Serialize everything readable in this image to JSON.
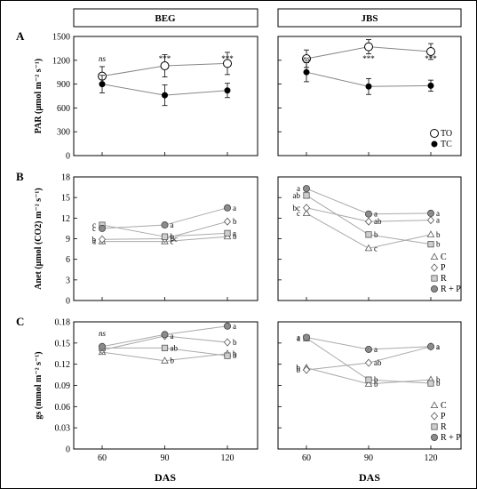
{
  "strips": [
    "BEG",
    "JBS"
  ],
  "x_axis_label": "DAS",
  "x_ticks": [
    "60",
    "90",
    "120"
  ],
  "chart_data": [
    {
      "type": "line",
      "panel": "A",
      "site": "BEG",
      "ylabel": "PAR (μmol m⁻² s⁻¹)",
      "ylim": [
        0,
        1500
      ],
      "yticks": [
        "0",
        "300",
        "600",
        "900",
        "1200",
        "1500"
      ],
      "x": [
        60,
        90,
        120
      ],
      "series": [
        {
          "name": "TO",
          "values": [
            1000,
            1130,
            1160
          ],
          "err": [
            120,
            140,
            140
          ],
          "marker": "circle-open"
        },
        {
          "name": "TC",
          "values": [
            900,
            760,
            820
          ],
          "err": [
            110,
            130,
            90
          ],
          "marker": "circle-filled"
        }
      ],
      "annotations": [
        {
          "x": 60,
          "text": "ns"
        },
        {
          "x": 90,
          "text": "***"
        },
        {
          "x": 120,
          "text": "***"
        }
      ],
      "legend": []
    },
    {
      "type": "line",
      "panel": "",
      "site": "JBS",
      "ylabel": "",
      "ylim": [
        0,
        1500
      ],
      "yticks": [],
      "x": [
        60,
        90,
        120
      ],
      "series": [
        {
          "name": "TO",
          "values": [
            1220,
            1370,
            1310
          ],
          "err": [
            110,
            90,
            100
          ],
          "marker": "circle-open"
        },
        {
          "name": "TC",
          "values": [
            1050,
            870,
            880
          ],
          "err": [
            120,
            100,
            70
          ],
          "marker": "circle-filled"
        }
      ],
      "annotations": [
        {
          "x": 60,
          "text": "ns"
        },
        {
          "x": 90,
          "text": "***"
        },
        {
          "x": 120,
          "text": "***"
        }
      ],
      "legend": [
        {
          "label": "TO",
          "marker": "circle-open"
        },
        {
          "label": "TC",
          "marker": "circle-filled"
        }
      ]
    },
    {
      "type": "line",
      "panel": "B",
      "site": "BEG",
      "ylabel": "Anet (μmol (CO2) m⁻² s⁻¹)",
      "ylim": [
        0,
        18
      ],
      "yticks": [
        "0",
        "3",
        "6",
        "9",
        "12",
        "15",
        "18"
      ],
      "x": [
        60,
        90,
        120
      ],
      "series": [
        {
          "name": "C",
          "values": [
            8.6,
            8.6,
            9.3
          ],
          "letters": [
            "a",
            "c",
            "b"
          ],
          "marker": "triangle"
        },
        {
          "name": "P",
          "values": [
            8.9,
            9.0,
            11.5
          ],
          "letters": [
            "b",
            "bc",
            "b"
          ],
          "marker": "diamond"
        },
        {
          "name": "R",
          "values": [
            11.0,
            9.3,
            9.8
          ],
          "letters": [
            "c",
            "b",
            "a"
          ],
          "marker": "square"
        },
        {
          "name": "R + P",
          "values": [
            10.5,
            11.0,
            13.5
          ],
          "letters": [
            "c",
            "a",
            "a"
          ],
          "marker": "circle-gray"
        }
      ],
      "annotations": [],
      "legend": []
    },
    {
      "type": "line",
      "panel": "",
      "site": "JBS",
      "ylabel": "",
      "ylim": [
        0,
        18
      ],
      "yticks": [],
      "x": [
        60,
        90,
        120
      ],
      "series": [
        {
          "name": "C",
          "values": [
            12.7,
            7.6,
            9.6
          ],
          "letters": [
            "c",
            "c",
            "b"
          ],
          "marker": "triangle"
        },
        {
          "name": "P",
          "values": [
            13.5,
            11.5,
            11.7
          ],
          "letters": [
            "bc",
            "ab",
            "a"
          ],
          "marker": "diamond"
        },
        {
          "name": "R",
          "values": [
            15.3,
            9.6,
            8.2
          ],
          "letters": [
            "ab",
            "b",
            "b"
          ],
          "marker": "square"
        },
        {
          "name": "R + P",
          "values": [
            16.3,
            12.6,
            12.7
          ],
          "letters": [
            "a",
            "a",
            "a"
          ],
          "marker": "circle-gray"
        }
      ],
      "annotations": [],
      "legend": [
        {
          "label": "C",
          "marker": "triangle"
        },
        {
          "label": "P",
          "marker": "diamond"
        },
        {
          "label": "R",
          "marker": "square"
        },
        {
          "label": "R + P",
          "marker": "circle-gray"
        }
      ]
    },
    {
      "type": "line",
      "panel": "C",
      "site": "BEG",
      "ylabel": "gs (mmol m⁻² s⁻¹)",
      "ylim": [
        0,
        0.18
      ],
      "yticks": [
        "0",
        "0.03",
        "0.06",
        "0.09",
        "0.12",
        "0.15",
        "0.18"
      ],
      "x": [
        60,
        90,
        120
      ],
      "series": [
        {
          "name": "C",
          "values": [
            0.137,
            0.125,
            0.135
          ],
          "letters": [
            "",
            "b",
            "b"
          ],
          "marker": "triangle"
        },
        {
          "name": "P",
          "values": [
            0.14,
            0.16,
            0.151
          ],
          "letters": [
            "",
            "a",
            "b"
          ],
          "marker": "diamond"
        },
        {
          "name": "R",
          "values": [
            0.143,
            0.143,
            0.132
          ],
          "letters": [
            "",
            "ab",
            "b"
          ],
          "marker": "square"
        },
        {
          "name": "R + P",
          "values": [
            0.145,
            0.162,
            0.174
          ],
          "letters": [
            "",
            "",
            "a"
          ],
          "marker": "circle-gray"
        }
      ],
      "annotations": [
        {
          "x": 60,
          "text": "ns"
        }
      ],
      "legend": []
    },
    {
      "type": "line",
      "panel": "",
      "site": "JBS",
      "ylabel": "",
      "ylim": [
        0,
        0.18
      ],
      "yticks": [],
      "x": [
        60,
        90,
        120
      ],
      "series": [
        {
          "name": "C",
          "values": [
            0.115,
            0.092,
            0.098
          ],
          "letters": [
            "b",
            "b",
            "b"
          ],
          "marker": "triangle"
        },
        {
          "name": "P",
          "values": [
            0.112,
            0.122,
            0.145
          ],
          "letters": [
            "b",
            "ab",
            "a"
          ],
          "marker": "diamond"
        },
        {
          "name": "R",
          "values": [
            0.157,
            0.098,
            0.093
          ],
          "letters": [
            "a",
            "b",
            "b"
          ],
          "marker": "square"
        },
        {
          "name": "R + P",
          "values": [
            0.158,
            0.141,
            0.145
          ],
          "letters": [
            "a",
            "a",
            "a"
          ],
          "marker": "circle-gray"
        }
      ],
      "annotations": [],
      "legend": [
        {
          "label": "C",
          "marker": "triangle"
        },
        {
          "label": "P",
          "marker": "diamond"
        },
        {
          "label": "R",
          "marker": "square"
        },
        {
          "label": "R + P",
          "marker": "circle-gray"
        }
      ]
    }
  ]
}
